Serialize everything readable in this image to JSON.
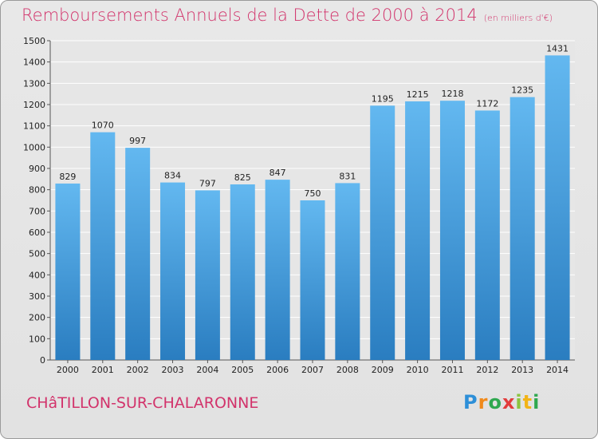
{
  "header": {
    "title": "Remboursements Annuels de la Dette de 2000 à 2014",
    "unit": "(en milliers d'€)"
  },
  "footer": {
    "commune": "CHâTILLON-SUR-CHALARONNE",
    "brand": [
      "P",
      "r",
      "o",
      "x",
      "i",
      "t",
      "i"
    ]
  },
  "colors": {
    "title": "#d2336b",
    "bar_light": "#63b8f0",
    "bar_dark": "#2a7dc0",
    "grid": "#ffffff",
    "background": "#e5e5e5"
  },
  "chart_data": {
    "type": "bar",
    "title": "Remboursements Annuels de la Dette de 2000 à 2014",
    "categories": [
      "2000",
      "2001",
      "2002",
      "2003",
      "2004",
      "2005",
      "2006",
      "2007",
      "2008",
      "2009",
      "2010",
      "2011",
      "2012",
      "2013",
      "2014"
    ],
    "values": [
      829,
      1070,
      997,
      834,
      797,
      825,
      847,
      750,
      831,
      1195,
      1215,
      1218,
      1172,
      1235,
      1431
    ],
    "ylim": [
      0,
      1500
    ],
    "yticks": [
      0,
      100,
      200,
      300,
      400,
      500,
      600,
      700,
      800,
      900,
      1000,
      1100,
      1200,
      1300,
      1400,
      1500
    ],
    "grid": true,
    "xlabel": "",
    "ylabel": ""
  }
}
